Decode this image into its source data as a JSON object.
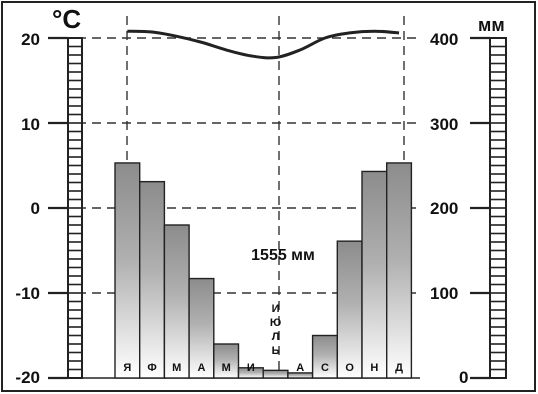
{
  "chart_data": {
    "type": "bar",
    "title": "",
    "temperature_unit": "°C",
    "precipitation_unit": "мм",
    "total_precipitation_label": "1555 мм",
    "temperature_ticks": [
      "20",
      "10",
      "0",
      "-10",
      "-20"
    ],
    "precipitation_ticks": [
      "400",
      "300",
      "200",
      "100",
      "0"
    ],
    "temperature_range": [
      -20,
      20
    ],
    "precipitation_range": [
      0,
      400
    ],
    "months": [
      "Я",
      "Ф",
      "М",
      "А",
      "М",
      "И",
      "ИЮЛЬ",
      "А",
      "С",
      "О",
      "Н",
      "Д"
    ],
    "july_label_letters": [
      "И",
      "Ю",
      "Л",
      "Ь"
    ],
    "precipitation": [
      253,
      231,
      180,
      117,
      40,
      12,
      9,
      6,
      50,
      161,
      243,
      253
    ],
    "temperature": [
      20.8,
      20.7,
      20.2,
      19.5,
      18.6,
      17.9,
      17.7,
      18.6,
      20.0,
      20.6,
      20.8,
      20.6
    ],
    "grid": true,
    "colors": {
      "bar_top": "#8c8c8c",
      "bar_bottom": "#ffffff",
      "line": "#222222"
    }
  }
}
